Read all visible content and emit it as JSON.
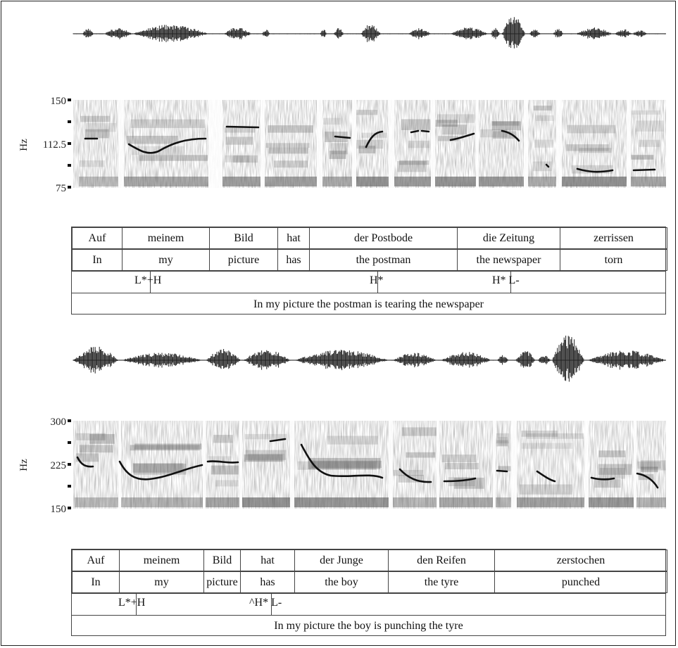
{
  "panels": [
    {
      "y_axis": {
        "label": "Hz",
        "ticks": [
          "150",
          "112.5",
          "75"
        ]
      },
      "words_de": [
        "Auf",
        "meinem",
        "Bild",
        "hat",
        "der Postbode",
        "die Zeitung",
        "zerrissen"
      ],
      "words_en": [
        "In",
        "my",
        "picture",
        "has",
        "the postman",
        "the newspaper",
        "torn"
      ],
      "tones": [
        "L*+H",
        "H*",
        "H* L-"
      ],
      "translation": "In my picture the postman is tearing the newspaper"
    },
    {
      "y_axis": {
        "label": "Hz",
        "ticks": [
          "300",
          "225",
          "150"
        ]
      },
      "words_de": [
        "Auf",
        "meinem",
        "Bild",
        "hat",
        "der Junge",
        "den Reifen",
        "zerstochen"
      ],
      "words_en": [
        "In",
        "my",
        "picture",
        "has",
        "the boy",
        "the tyre",
        "punched"
      ],
      "tones": [
        "L*+H",
        "^H* L-"
      ],
      "translation": "In my picture the boy is punching the tyre"
    }
  ]
}
